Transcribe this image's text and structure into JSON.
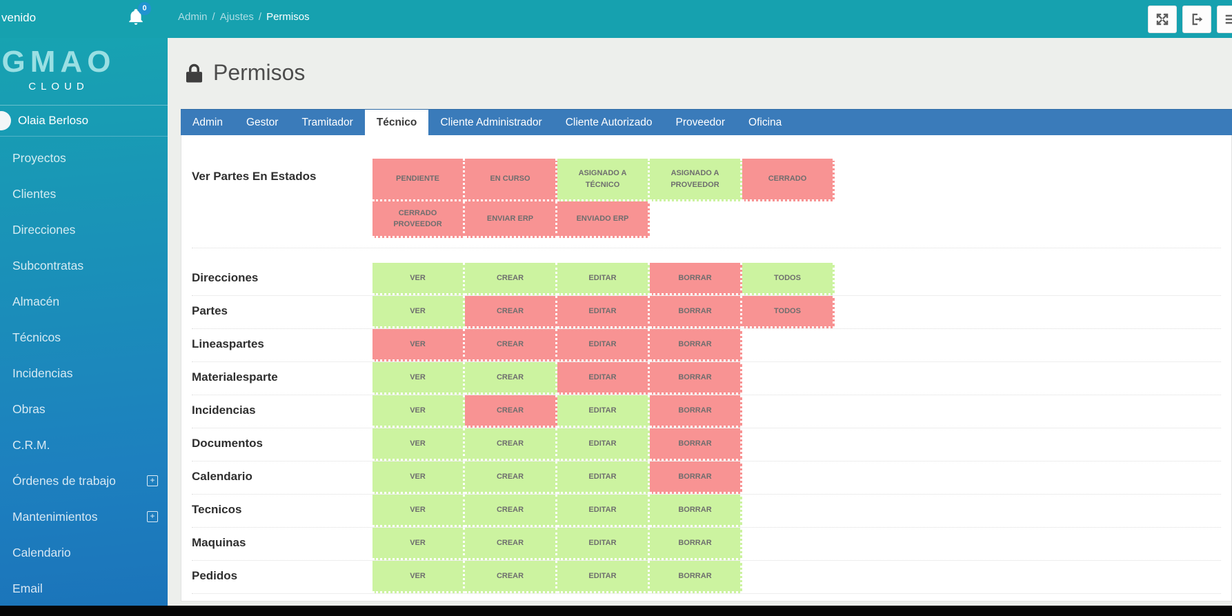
{
  "colors": {
    "allowed_green": "#ccf3a0",
    "denied_red": "#f89393",
    "teal_header": "#16a1af",
    "tab_blue": "#3a7bba",
    "badge_blue": "#2193d1"
  },
  "header": {
    "welcome_text": "venido",
    "notification_count": "0",
    "breadcrumb": {
      "items": [
        "Admin",
        "Ajustes",
        "Permisos"
      ],
      "separator": "/"
    }
  },
  "sidebar": {
    "logo_main": "GMAO",
    "logo_sub": "CLOUD",
    "user_name": "Olaia Berloso",
    "items": [
      {
        "label": "Proyectos",
        "expandable": false
      },
      {
        "label": "Clientes",
        "expandable": false
      },
      {
        "label": "Direcciones",
        "expandable": false
      },
      {
        "label": "Subcontratas",
        "expandable": false
      },
      {
        "label": "Almacén",
        "expandable": false
      },
      {
        "label": "Técnicos",
        "expandable": false
      },
      {
        "label": "Incidencias",
        "expandable": false
      },
      {
        "label": "Obras",
        "expandable": false
      },
      {
        "label": "C.R.M.",
        "expandable": false
      },
      {
        "label": "Órdenes de trabajo",
        "expandable": true
      },
      {
        "label": "Mantenimientos",
        "expandable": true
      },
      {
        "label": "Calendario",
        "expandable": false
      },
      {
        "label": "Email",
        "expandable": false
      }
    ],
    "expand_glyph": "+"
  },
  "page": {
    "title": "Permisos"
  },
  "tabs": [
    {
      "label": "Admin",
      "active": false
    },
    {
      "label": "Gestor",
      "active": false
    },
    {
      "label": "Tramitador",
      "active": false
    },
    {
      "label": "Técnico",
      "active": true
    },
    {
      "label": "Cliente Administrador",
      "active": false
    },
    {
      "label": "Cliente Autorizado",
      "active": false
    },
    {
      "label": "Proveedor",
      "active": false
    },
    {
      "label": "Oficina",
      "active": false
    }
  ],
  "estados": {
    "label": "Ver Partes En Estados",
    "cells": [
      {
        "label": "PENDIENTE",
        "state": "denied"
      },
      {
        "label": "EN CURSO",
        "state": "denied"
      },
      {
        "label": "ASIGNADO A TÉCNICO",
        "state": "allowed"
      },
      {
        "label": "ASIGNADO A PROVEEDOR",
        "state": "allowed"
      },
      {
        "label": "CERRADO",
        "state": "denied"
      },
      {
        "label": "CERRADO PROVEEDOR",
        "state": "denied"
      },
      {
        "label": "ENVIAR ERP",
        "state": "denied"
      },
      {
        "label": "ENVIADO ERP",
        "state": "denied"
      }
    ]
  },
  "permissions": {
    "columns": [
      "VER",
      "CREAR",
      "EDITAR",
      "BORRAR",
      "TODOS"
    ],
    "rows": [
      {
        "label": "Direcciones",
        "states": [
          "allowed",
          "allowed",
          "allowed",
          "denied",
          "allowed"
        ]
      },
      {
        "label": "Partes",
        "states": [
          "allowed",
          "denied",
          "denied",
          "denied",
          "denied"
        ]
      },
      {
        "label": "Lineaspartes",
        "states": [
          "denied",
          "denied",
          "denied",
          "denied"
        ]
      },
      {
        "label": "Materialesparte",
        "states": [
          "allowed",
          "allowed",
          "denied",
          "denied"
        ]
      },
      {
        "label": "Incidencias",
        "states": [
          "allowed",
          "denied",
          "allowed",
          "denied"
        ]
      },
      {
        "label": "Documentos",
        "states": [
          "allowed",
          "allowed",
          "allowed",
          "denied"
        ]
      },
      {
        "label": "Calendario",
        "states": [
          "allowed",
          "allowed",
          "allowed",
          "denied"
        ]
      },
      {
        "label": "Tecnicos",
        "states": [
          "allowed",
          "allowed",
          "allowed",
          "allowed"
        ]
      },
      {
        "label": "Maquinas",
        "states": [
          "allowed",
          "allowed",
          "allowed",
          "allowed"
        ]
      },
      {
        "label": "Pedidos",
        "states": [
          "allowed",
          "allowed",
          "allowed",
          "allowed"
        ]
      }
    ]
  }
}
